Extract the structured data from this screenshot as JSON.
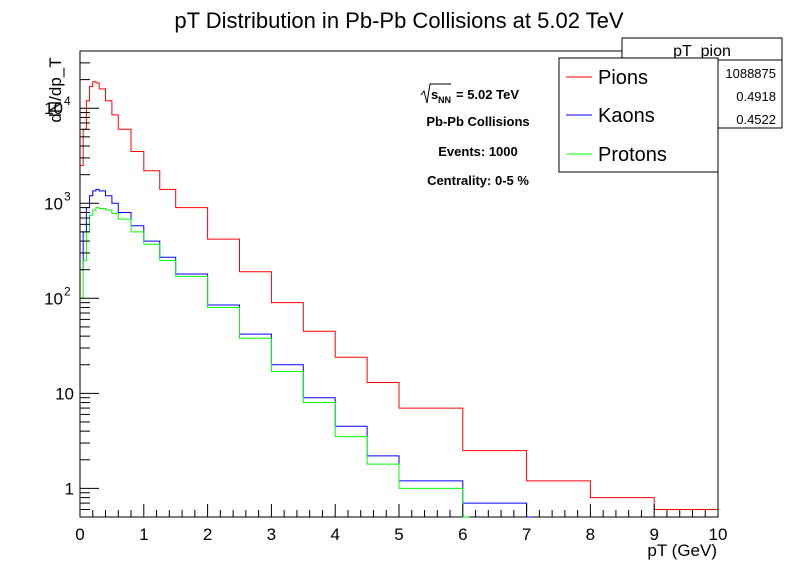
{
  "chart_data": {
    "type": "line",
    "style": "histogram-step",
    "title": "pT Distribution in Pb-Pb Collisions at 5.02 TeV",
    "xlabel": "pT (GeV)",
    "ylabel": "dN/dp_T",
    "xlim": [
      0,
      10
    ],
    "ylim": [
      0.5,
      40000
    ],
    "yscale": "log",
    "grid": false,
    "x_ticks": [
      "0",
      "1",
      "2",
      "3",
      "4",
      "5",
      "6",
      "7",
      "8",
      "9",
      "10"
    ],
    "y_ticks": [
      {
        "value": 1,
        "base": "1",
        "exp": ""
      },
      {
        "value": 10,
        "base": "10",
        "exp": ""
      },
      {
        "value": 100,
        "base": "10",
        "exp": "2"
      },
      {
        "value": 1000,
        "base": "10",
        "exp": "3"
      },
      {
        "value": 10000,
        "base": "10",
        "exp": "4"
      }
    ],
    "legend_position": "top-right",
    "series": [
      {
        "name": "Pions",
        "color": "#ff0000",
        "x": [
          0.0,
          0.05,
          0.1,
          0.15,
          0.2,
          0.25,
          0.3,
          0.4,
          0.5,
          0.6,
          0.8,
          1.0,
          1.25,
          1.5,
          2.0,
          2.5,
          3.0,
          3.5,
          4.0,
          4.5,
          5.0,
          6.0,
          7.0,
          8.0,
          9.0,
          10.0
        ],
        "values": [
          2500,
          6000,
          12000,
          17000,
          19000,
          18500,
          16000,
          12000,
          8500,
          6000,
          3500,
          2200,
          1400,
          900,
          420,
          190,
          90,
          45,
          24,
          13,
          7,
          2.5,
          1.2,
          0.8,
          0.6,
          0.5
        ]
      },
      {
        "name": "Kaons",
        "color": "#0000ff",
        "x": [
          0.0,
          0.05,
          0.1,
          0.15,
          0.2,
          0.25,
          0.3,
          0.4,
          0.5,
          0.6,
          0.8,
          1.0,
          1.25,
          1.5,
          2.0,
          2.5,
          3.0,
          3.5,
          4.0,
          4.5,
          5.0,
          6.0,
          7.0
        ],
        "values": [
          200,
          500,
          900,
          1200,
          1350,
          1400,
          1350,
          1200,
          1000,
          800,
          580,
          400,
          270,
          180,
          85,
          42,
          20,
          9,
          4.5,
          2.2,
          1.2,
          0.7,
          0.5
        ]
      },
      {
        "name": "Protons",
        "color": "#00ff00",
        "x": [
          0.0,
          0.05,
          0.1,
          0.15,
          0.2,
          0.25,
          0.3,
          0.4,
          0.5,
          0.6,
          0.8,
          1.0,
          1.25,
          1.5,
          2.0,
          2.5,
          3.0,
          3.5,
          4.0,
          4.5,
          5.0,
          6.0
        ],
        "values": [
          100,
          250,
          500,
          750,
          850,
          900,
          880,
          850,
          780,
          680,
          500,
          370,
          250,
          170,
          80,
          38,
          17,
          8,
          3.5,
          1.8,
          1.0,
          0.5
        ]
      }
    ],
    "stats_box": {
      "title": "pT_pion",
      "values": [
        "1088875",
        "0.4918",
        "0.4522"
      ]
    },
    "annotations": {
      "sqrt_s_symbol": "s",
      "sqrt_s_subscript": "NN",
      "sqrt_s_value": "= 5.02 TeV",
      "collision_system": "Pb-Pb Collisions",
      "events": "Events: 1000",
      "centrality": "Centrality: 0-5 %"
    }
  }
}
